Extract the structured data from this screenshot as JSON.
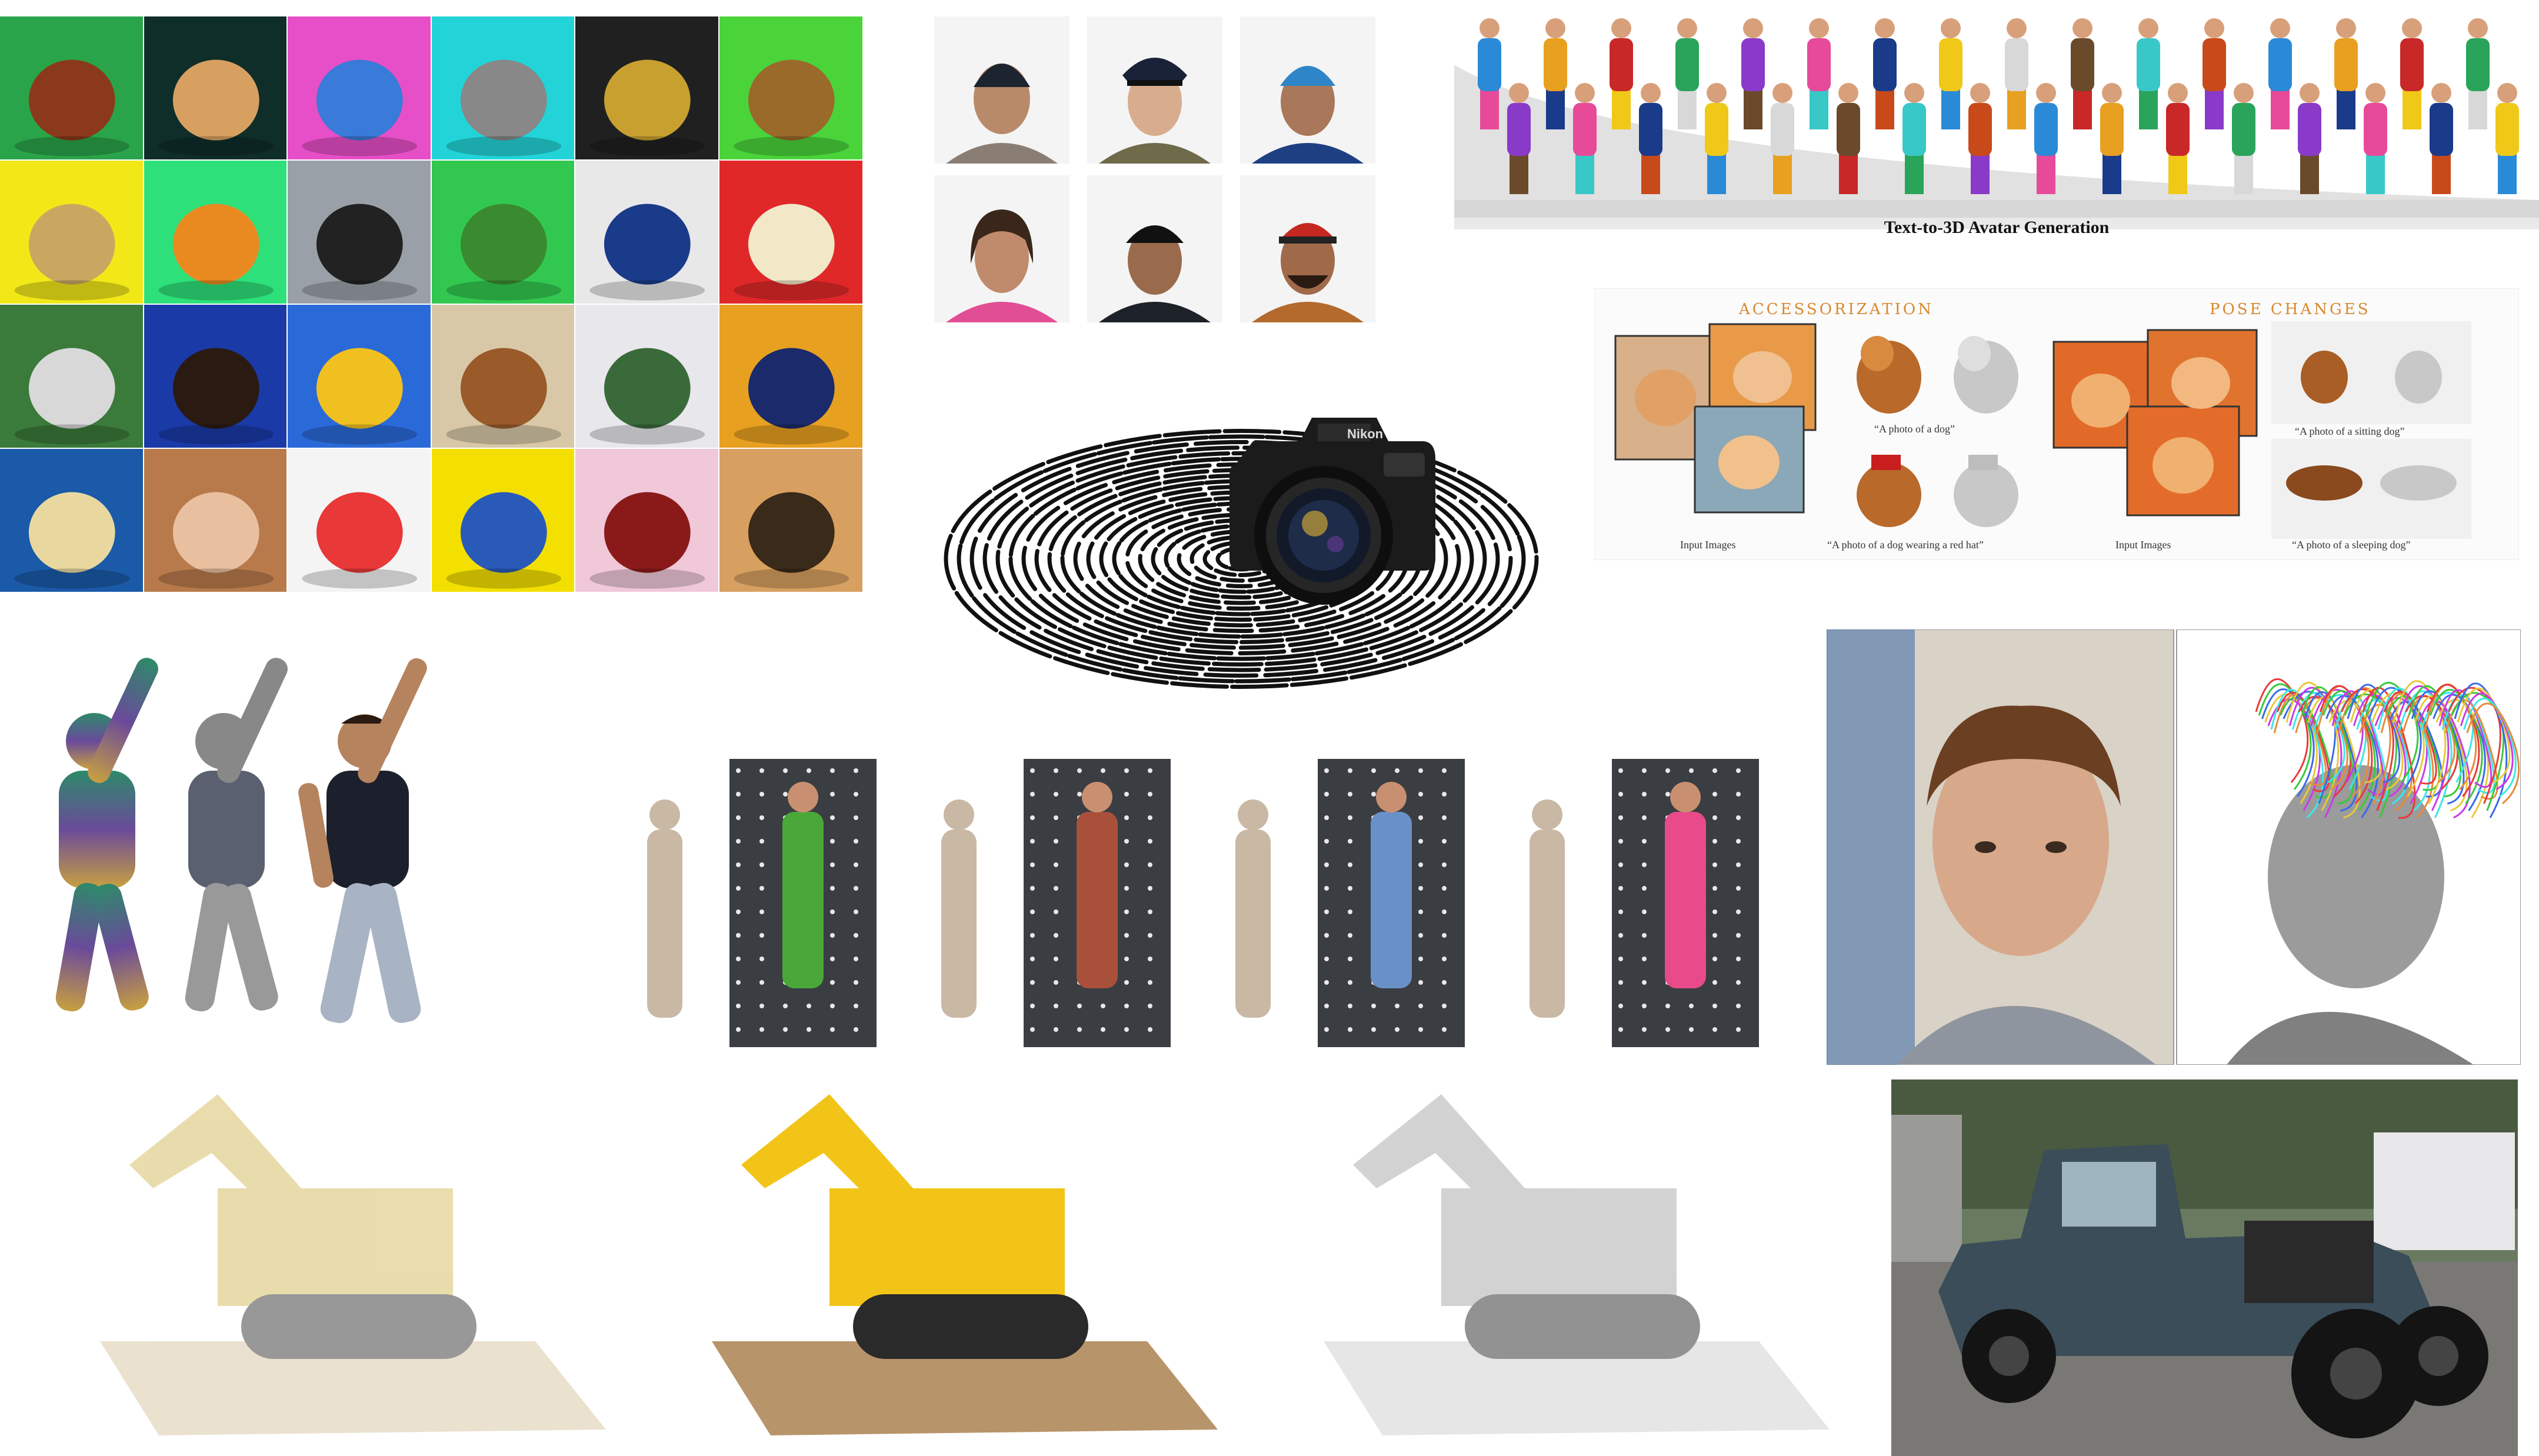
{
  "avatar_panel": {
    "caption": "Text-to-3D Avatar Generation"
  },
  "dog_panel": {
    "section_accessorization": "ACCESSORIZATION",
    "section_pose_changes": "POSE CHANGES",
    "input_images_left": "Input Images",
    "input_images_right": "Input Images",
    "prompt_dog": "“A photo of a dog”",
    "prompt_red_hat": "“A photo of a dog wearing a red hat”",
    "prompt_sitting": "“A photo of a sitting dog”",
    "prompt_sleeping": "“A photo of a sleeping dog”"
  },
  "camera_panel": {
    "brand": "Nikon"
  },
  "colors": {
    "grid_backgrounds": [
      "#2aa44a",
      "#0f2e2a",
      "#e64fc8",
      "#22d4d8",
      "#202020",
      "#4ad43a",
      "#f2e818",
      "#2ee07a",
      "#9aa0a8",
      "#32c850",
      "#e8e8e8",
      "#e02828",
      "#3a7a3a",
      "#1a3aa8",
      "#2a6ad8",
      "#d8c8a8",
      "#e8e8ec",
      "#e8a020",
      "#1a5aa8",
      "#b87a4a",
      "#f4f4f4",
      "#f4e000",
      "#f0c8d8",
      "#d8a060"
    ],
    "accent_header": "#d9882c",
    "lego_yellow": "#f2c418"
  }
}
